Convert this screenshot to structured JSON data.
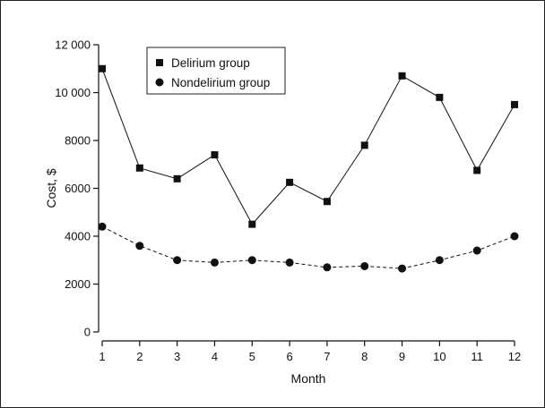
{
  "chart_data": {
    "type": "line",
    "title": "",
    "xlabel": "Month",
    "ylabel": "Cost, $",
    "x": [
      1,
      2,
      3,
      4,
      5,
      6,
      7,
      8,
      9,
      10,
      11,
      12
    ],
    "xticks": [
      "1",
      "2",
      "3",
      "4",
      "5",
      "6",
      "7",
      "8",
      "9",
      "10",
      "11",
      "12"
    ],
    "xlim": [
      1,
      12
    ],
    "ylim": [
      0,
      12000
    ],
    "yticks": [
      0,
      2000,
      4000,
      6000,
      8000,
      10000,
      12000
    ],
    "ytick_labels": [
      "0",
      "2000",
      "4000",
      "6000",
      "8000",
      "10 000",
      "12 000"
    ],
    "grid": false,
    "legend_position": "top-left",
    "series": [
      {
        "name": "Delirium group",
        "marker": "square",
        "line_style": "solid",
        "color": "#111111",
        "values": [
          11000,
          6850,
          6400,
          7400,
          4500,
          6250,
          5450,
          7800,
          10700,
          9800,
          6750,
          9500
        ]
      },
      {
        "name": "Nondelirium group",
        "marker": "circle",
        "line_style": "dashed",
        "color": "#111111",
        "values": [
          4400,
          3600,
          3000,
          2900,
          3000,
          2900,
          2700,
          2750,
          2650,
          3000,
          3400,
          4000
        ]
      }
    ]
  }
}
